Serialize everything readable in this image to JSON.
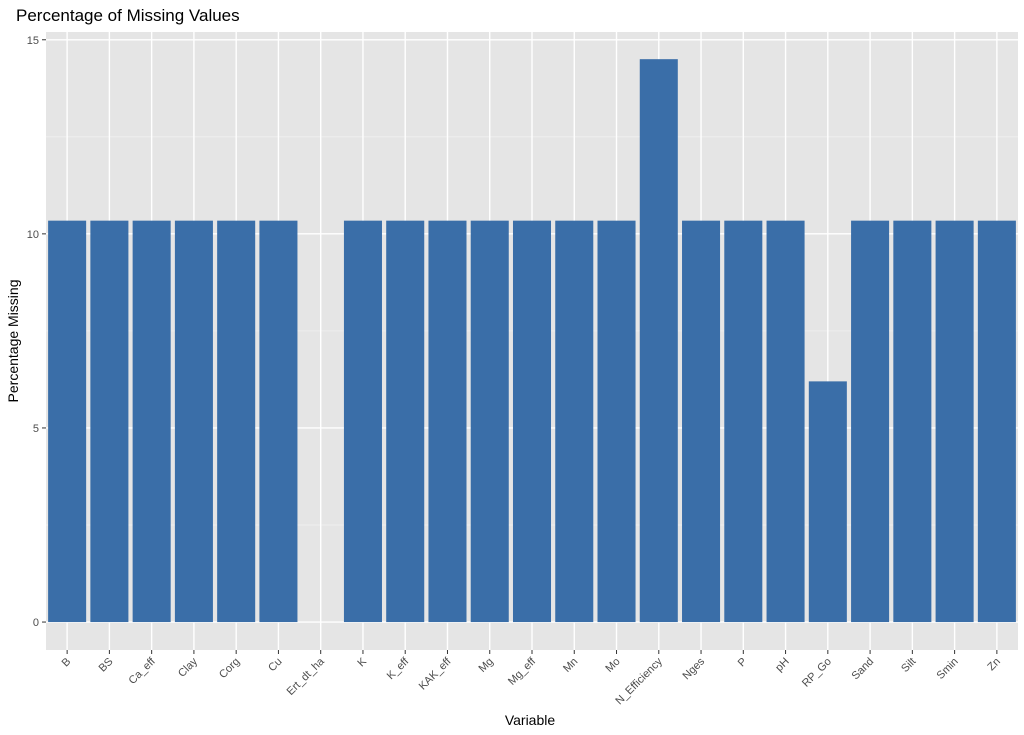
{
  "chart_data": {
    "type": "bar",
    "title": "Percentage of Missing Values",
    "xlabel": "Variable",
    "ylabel": "Percentage Missing",
    "categories": [
      "B",
      "BS",
      "Ca_eff",
      "Clay",
      "Corg",
      "Cu",
      "Ert_dt_ha",
      "K",
      "K_eff",
      "KAK_eff",
      "Mg",
      "Mg_eff",
      "Mn",
      "Mo",
      "N_Efficiency",
      "Nges",
      "P",
      "pH",
      "RP_Go",
      "Sand",
      "Silt",
      "Smin",
      "Zn"
    ],
    "values": [
      10.34,
      10.34,
      10.34,
      10.34,
      10.34,
      10.34,
      0,
      10.34,
      10.34,
      10.34,
      10.34,
      10.34,
      10.34,
      10.34,
      14.5,
      10.34,
      10.34,
      10.34,
      6.2,
      10.34,
      10.34,
      10.34,
      10.34
    ],
    "yticks": [
      0,
      5,
      10,
      15
    ],
    "ylim": [
      -0.72,
      15.2
    ],
    "grid": true,
    "legend": "none",
    "colors": {
      "bar": "#3a6ea8",
      "panel": "#e5e5e5",
      "grid_major": "#ffffff",
      "grid_minor": "#f0f0f0"
    }
  }
}
